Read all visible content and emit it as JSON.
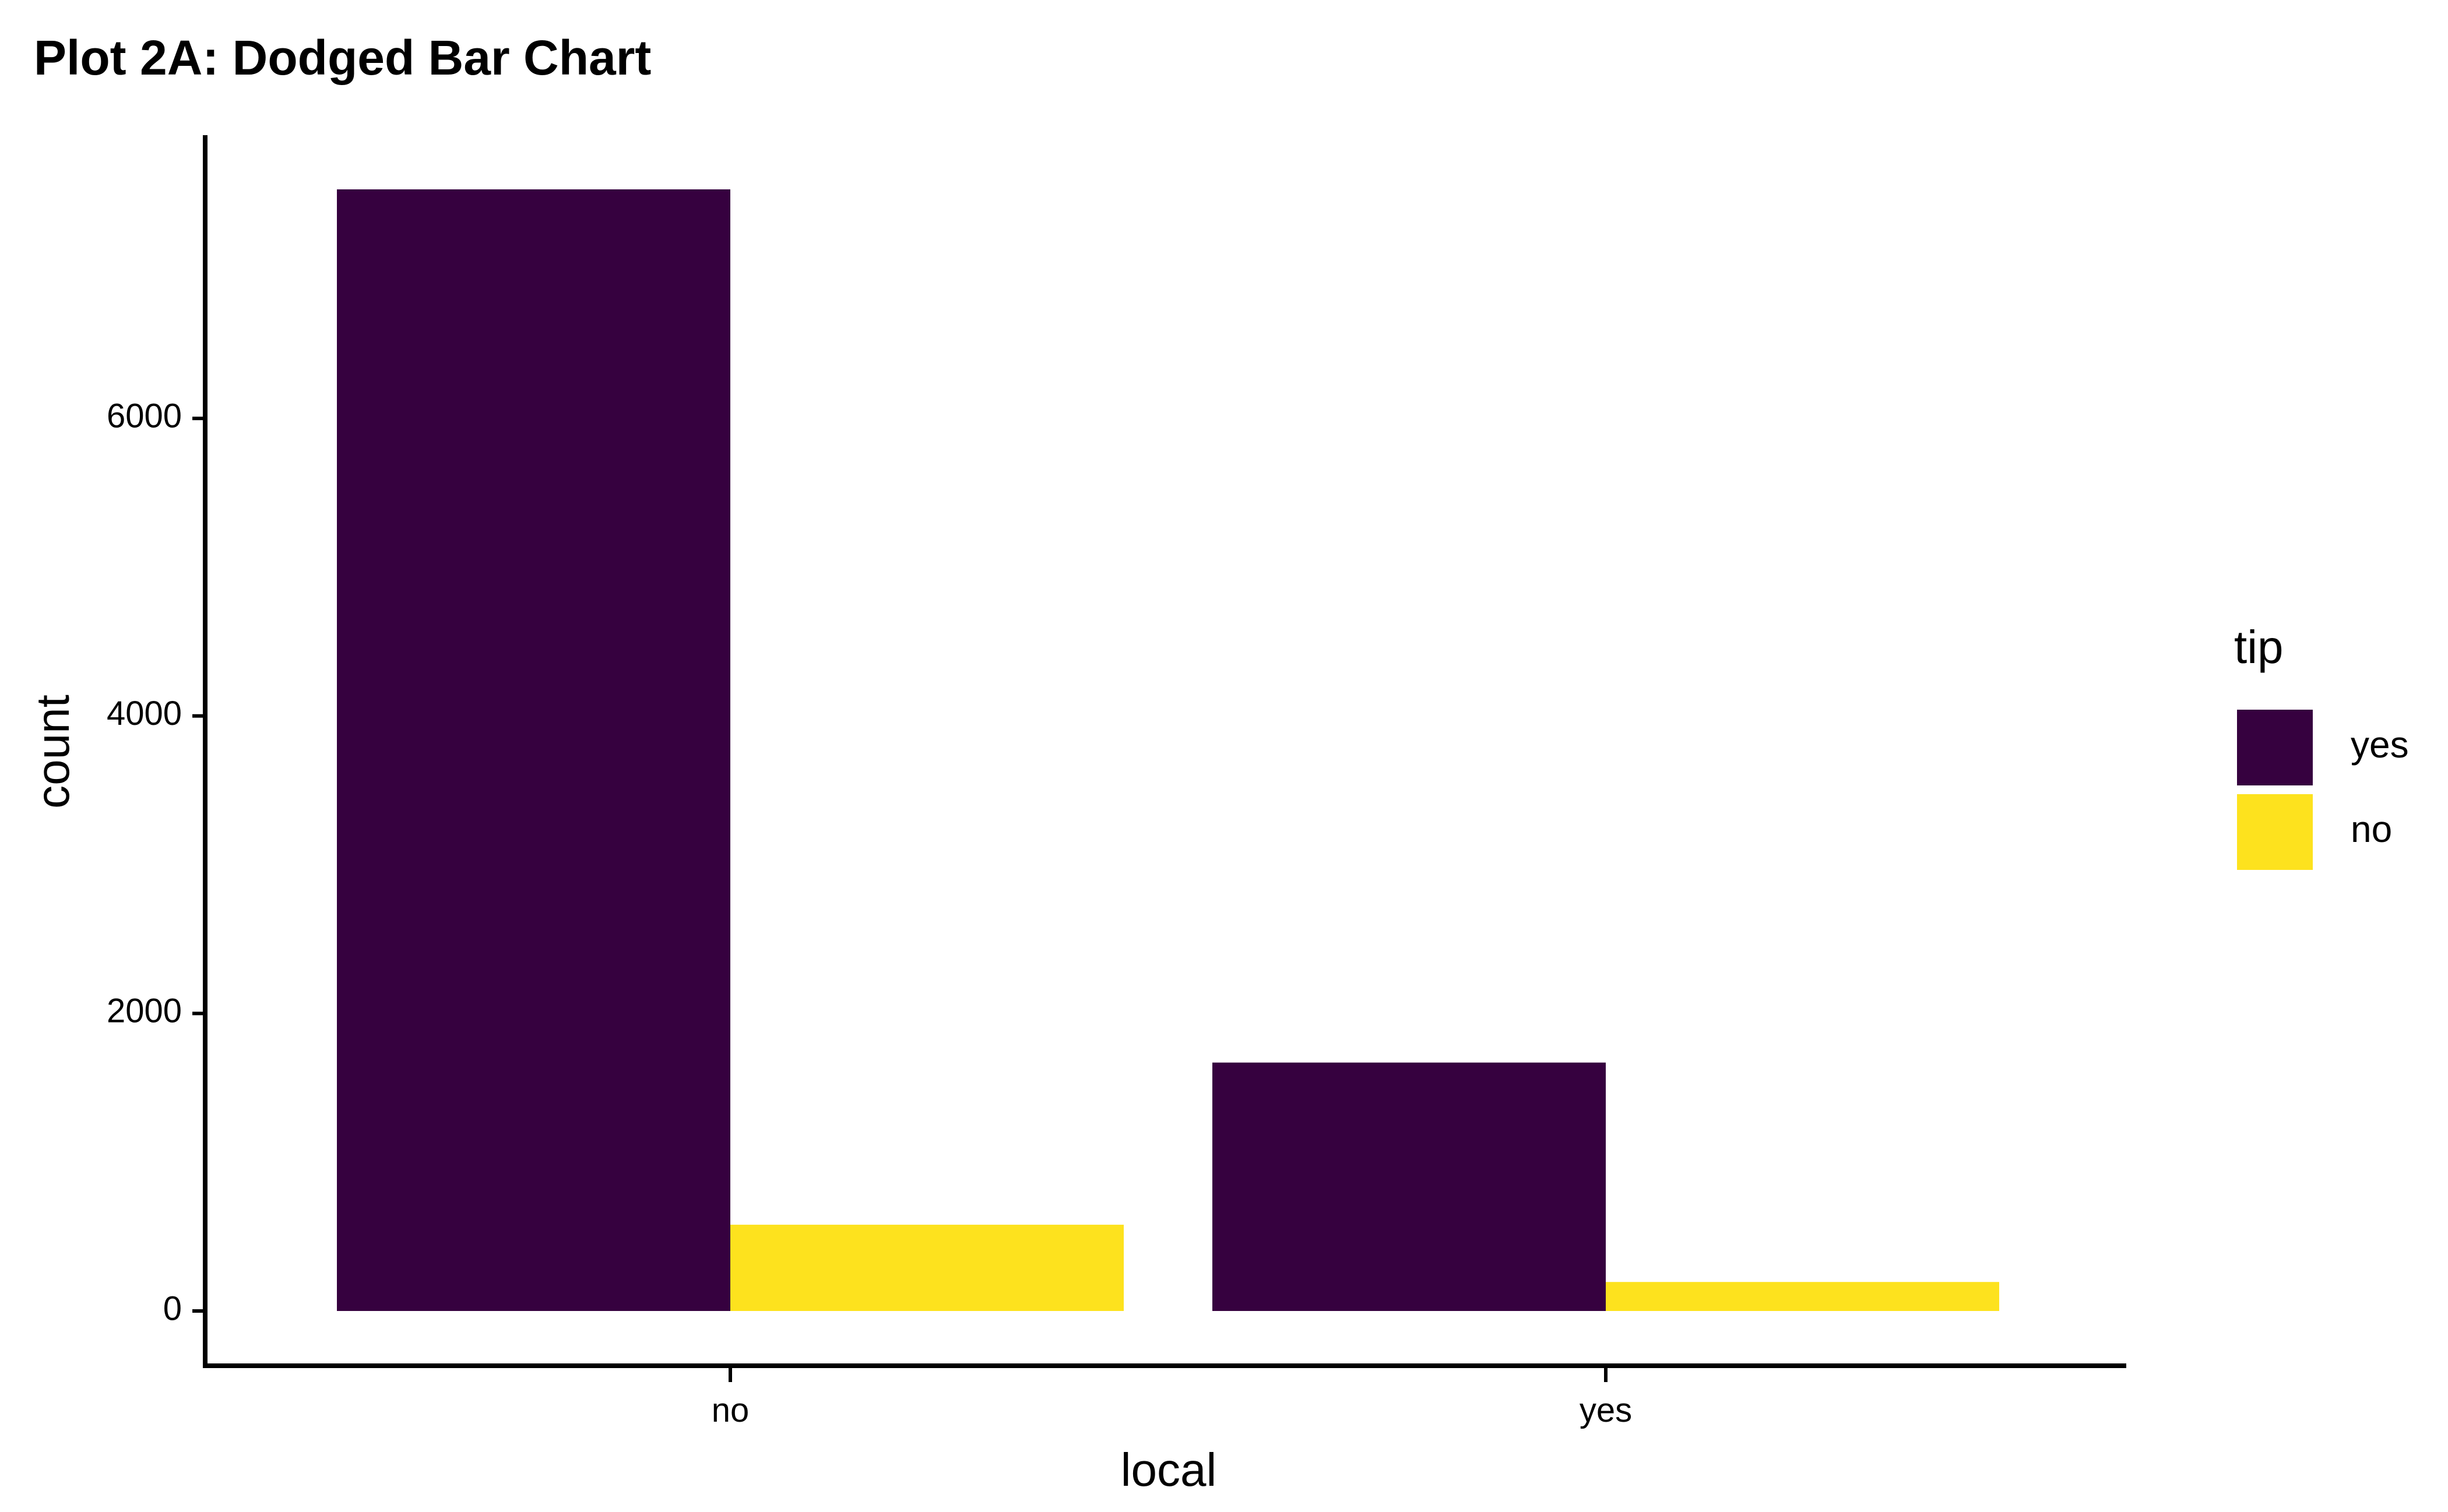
{
  "chart_data": {
    "type": "bar",
    "title": "Plot 2A: Dodged Bar Chart",
    "xlabel": "local",
    "ylabel": "count",
    "categories": [
      "no",
      "yes"
    ],
    "series": [
      {
        "name": "yes",
        "color": "#36013F",
        "values": [
          7540,
          1670
        ]
      },
      {
        "name": "no",
        "color": "#FDE21E",
        "values": [
          580,
          195
        ]
      }
    ],
    "ylim": [
      0,
      7540
    ],
    "yticks": [
      0,
      2000,
      4000,
      6000
    ],
    "grid": false,
    "legend": {
      "title": "tip",
      "position": "right"
    }
  }
}
